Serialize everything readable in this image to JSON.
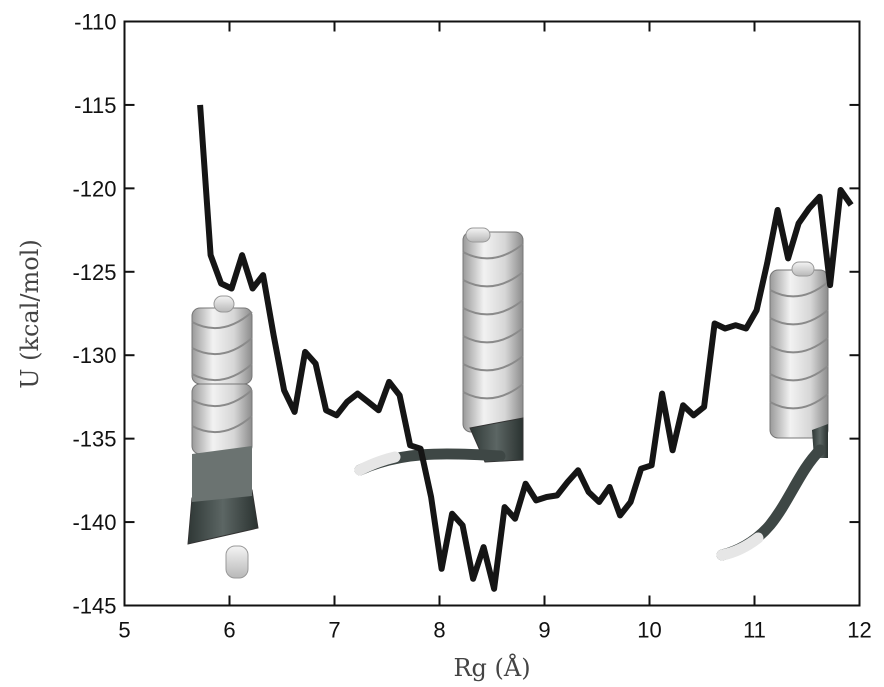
{
  "chart_data": {
    "type": "line",
    "xlabel": "Rg (Å)",
    "ylabel": "U (kcal/mol)",
    "xlim": [
      5,
      12
    ],
    "ylim": [
      -145,
      -110
    ],
    "x_ticks": [
      5,
      6,
      7,
      8,
      9,
      10,
      11,
      12
    ],
    "y_ticks": [
      -110,
      -115,
      -120,
      -125,
      -130,
      -135,
      -140,
      -145
    ],
    "grid": false,
    "legend": "none",
    "line_color": "#151515",
    "series": [
      {
        "x": [
          5.72,
          5.82,
          5.92,
          6.02,
          6.12,
          6.22,
          6.32,
          6.42,
          6.52,
          6.62,
          6.72,
          6.82,
          6.92,
          7.02,
          7.12,
          7.22,
          7.32,
          7.42,
          7.52,
          7.62,
          7.72,
          7.82,
          7.92,
          8.02,
          8.12,
          8.22,
          8.32,
          8.42,
          8.52,
          8.62,
          8.72,
          8.82,
          8.92,
          9.02,
          9.12,
          9.22,
          9.32,
          9.42,
          9.52,
          9.62,
          9.72,
          9.82,
          9.92,
          10.02,
          10.12,
          10.22,
          10.32,
          10.42,
          10.52,
          10.62,
          10.72,
          10.82,
          10.92,
          11.02,
          11.12,
          11.22,
          11.32,
          11.42,
          11.52,
          11.62,
          11.72,
          11.82,
          11.92
        ],
        "y": [
          -115.0,
          -124.0,
          -125.7,
          -126.0,
          -124.0,
          -126.0,
          -125.2,
          -128.8,
          -132.1,
          -133.4,
          -129.8,
          -130.5,
          -133.3,
          -133.6,
          -132.8,
          -132.3,
          -132.8,
          -133.3,
          -131.6,
          -132.4,
          -135.4,
          -135.6,
          -138.5,
          -142.8,
          -139.5,
          -140.2,
          -143.4,
          -141.5,
          -144.0,
          -139.1,
          -139.8,
          -137.7,
          -138.7,
          -138.5,
          -138.4,
          -137.6,
          -136.9,
          -138.2,
          -138.8,
          -137.9,
          -139.6,
          -138.8,
          -136.8,
          -136.6,
          -132.3,
          -135.7,
          -133.0,
          -133.6,
          -133.1,
          -128.1,
          -128.4,
          -128.2,
          -128.4,
          -127.3,
          -124.5,
          -121.3,
          -124.2,
          -122.1,
          -121.2,
          -120.5,
          -125.8,
          -120.1,
          -121.0
        ]
      }
    ]
  },
  "insets": [
    {
      "name": "compact-helix-structure"
    },
    {
      "name": "middle-helix-structure"
    },
    {
      "name": "extended-helix-structure"
    }
  ]
}
